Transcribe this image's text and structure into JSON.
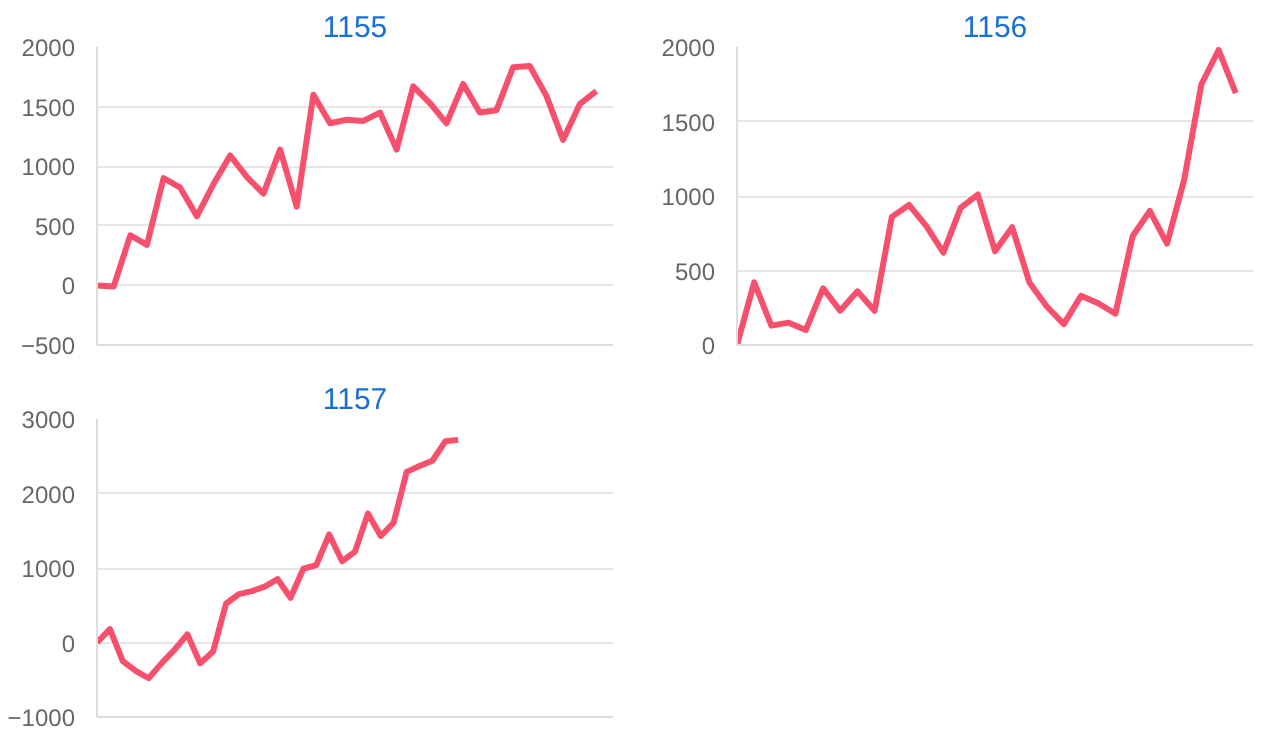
{
  "chart_data": [
    {
      "type": "line",
      "title": "1155",
      "tick_labels": "y",
      "grid": "y",
      "categories": [
        null,
        null,
        null,
        null,
        null,
        null,
        null,
        null,
        null,
        null,
        null,
        null,
        null,
        null,
        null,
        null,
        null,
        null,
        null,
        null,
        null,
        null,
        null,
        null,
        null,
        null,
        null,
        null,
        null,
        null,
        null,
        null
      ],
      "series": [
        {
          "color": "#f7506d",
          "values": [
            0,
            -10,
            420,
            340,
            900,
            820,
            580,
            850,
            1090,
            910,
            770,
            1140,
            660,
            1600,
            1360,
            1390,
            1380,
            1450,
            1140,
            1670,
            1530,
            1360,
            1690,
            1450,
            1470,
            1830,
            1840,
            1590,
            1220,
            1520,
            1630,
            null
          ]
        }
      ],
      "ylim": [
        -500,
        2000
      ],
      "yticks": [
        -500,
        0,
        500,
        1000,
        1500,
        2000
      ]
    },
    {
      "type": "line",
      "title": "1156",
      "tick_labels": "y",
      "grid": "y",
      "categories": [
        null,
        null,
        null,
        null,
        null,
        null,
        null,
        null,
        null,
        null,
        null,
        null,
        null,
        null,
        null,
        null,
        null,
        null,
        null,
        null,
        null,
        null,
        null,
        null,
        null,
        null,
        null,
        null,
        null,
        null,
        null
      ],
      "series": [
        {
          "color": "#f7506d",
          "values": [
            0,
            420,
            130,
            150,
            100,
            380,
            230,
            360,
            230,
            860,
            940,
            800,
            620,
            920,
            1010,
            630,
            790,
            420,
            260,
            140,
            330,
            280,
            210,
            730,
            900,
            680,
            1110,
            1750,
            1980,
            1690,
            null
          ]
        }
      ],
      "ylim": [
        0,
        2000
      ],
      "yticks": [
        0,
        500,
        1000,
        1500,
        2000
      ]
    },
    {
      "type": "line",
      "title": "1157",
      "tick_labels": "y",
      "grid": "y",
      "categories": [
        null,
        null,
        null,
        null,
        null,
        null,
        null,
        null,
        null,
        null,
        null,
        null,
        null,
        null,
        null,
        null,
        null,
        null,
        null,
        null,
        null,
        null,
        null,
        null,
        null,
        null,
        null,
        null,
        null,
        null,
        null,
        null,
        null,
        null,
        null,
        null,
        null,
        null,
        null,
        null,
        null
      ],
      "series": [
        {
          "color": "#f7506d",
          "values": [
            0,
            180,
            -250,
            -380,
            -480,
            -280,
            -100,
            110,
            -280,
            -120,
            520,
            650,
            690,
            750,
            850,
            600,
            990,
            1040,
            1450,
            1090,
            1220,
            1730,
            1430,
            1610,
            2290,
            2370,
            2440,
            2700,
            2720,
            null,
            null,
            null,
            null,
            null,
            null,
            null,
            null,
            null,
            null,
            null,
            null
          ]
        }
      ],
      "ylim": [
        -1000,
        3000
      ],
      "yticks": [
        -1000,
        0,
        1000,
        2000,
        3000
      ]
    }
  ]
}
